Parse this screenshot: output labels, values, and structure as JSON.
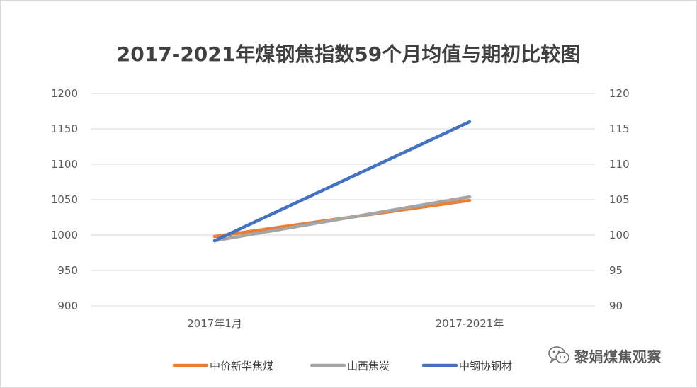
{
  "chart_data": {
    "type": "line",
    "title": "2017-2021年煤钢焦指数59个月均值与期初比较图",
    "categories": [
      "2017年1月",
      "2017-2021年"
    ],
    "y_left": {
      "ylim": [
        900,
        1200
      ],
      "ticks": [
        900,
        950,
        1000,
        1050,
        1100,
        1150,
        1200
      ]
    },
    "y_right": {
      "ylim": [
        90,
        120
      ],
      "ticks": [
        90,
        95,
        100,
        105,
        110,
        115,
        120
      ]
    },
    "grid": true,
    "legend_position": "bottom",
    "series": [
      {
        "name": "中价新华焦煤",
        "axis": "right",
        "values": [
          99.8,
          104.9
        ],
        "color": "#ED7D31"
      },
      {
        "name": "山西焦炭",
        "axis": "right",
        "values": [
          99.2,
          105.4
        ],
        "color": "#A5A5A5"
      },
      {
        "name": "中钢协钢材",
        "axis": "right",
        "values": [
          99.2,
          116.0
        ],
        "color": "#4472C4"
      }
    ]
  },
  "watermark": {
    "text": "黎娟煤焦观察",
    "icon": "wechat-icon"
  }
}
